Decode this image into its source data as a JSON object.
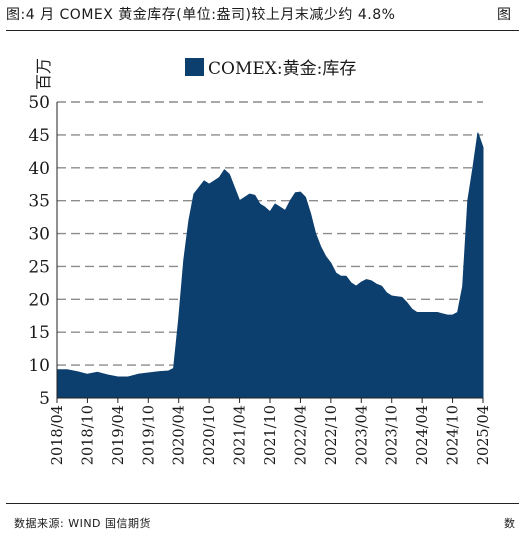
{
  "figure": {
    "title": "图:4 月 COMEX 黄金库存(单位:盎司)较上月末减少约 4.8%",
    "title_tail": "图",
    "source": "数据来源: WIND 国信期货",
    "source_tail": "数"
  },
  "colors": {
    "series": "#0d3f6e",
    "grid": "#8c8c8c",
    "axis": "#222222"
  },
  "chart_data": {
    "type": "area",
    "title": "",
    "ylabel": "百万",
    "xlabel": "",
    "ylim": [
      5,
      50
    ],
    "yticks": [
      5,
      10,
      15,
      20,
      25,
      30,
      35,
      40,
      45,
      50
    ],
    "grid": "horizontal dashed",
    "legend_position": "top-center",
    "xlim": [
      "2018-04",
      "2025-04"
    ],
    "xticks": [
      "2018/04",
      "2018/10",
      "2019/04",
      "2019/10",
      "2020/04",
      "2020/10",
      "2021/04",
      "2021/10",
      "2022/04",
      "2022/10",
      "2023/04",
      "2023/10",
      "2024/04",
      "2024/10",
      "2025/04"
    ],
    "series": [
      {
        "name": "COMEX:黄金:库存",
        "points": [
          [
            "2018-04",
            9.3
          ],
          [
            "2018-06",
            9.3
          ],
          [
            "2018-08",
            9.0
          ],
          [
            "2018-10",
            8.6
          ],
          [
            "2018-12",
            8.9
          ],
          [
            "2019-02",
            8.5
          ],
          [
            "2019-04",
            8.2
          ],
          [
            "2019-06",
            8.2
          ],
          [
            "2019-08",
            8.6
          ],
          [
            "2019-10",
            8.8
          ],
          [
            "2019-12",
            9.0
          ],
          [
            "2020-02",
            9.1
          ],
          [
            "2020-03",
            9.5
          ],
          [
            "2020-04",
            17.0
          ],
          [
            "2020-05",
            26.0
          ],
          [
            "2020-06",
            32.0
          ],
          [
            "2020-07",
            36.0
          ],
          [
            "2020-08",
            37.0
          ],
          [
            "2020-09",
            38.0
          ],
          [
            "2020-10",
            37.5
          ],
          [
            "2020-11",
            38.0
          ],
          [
            "2020-12",
            38.5
          ],
          [
            "2021-01",
            39.7
          ],
          [
            "2021-02",
            39.0
          ],
          [
            "2021-03",
            37.0
          ],
          [
            "2021-04",
            35.0
          ],
          [
            "2021-05",
            35.5
          ],
          [
            "2021-06",
            36.0
          ],
          [
            "2021-07",
            35.8
          ],
          [
            "2021-08",
            34.5
          ],
          [
            "2021-09",
            34.0
          ],
          [
            "2021-10",
            33.3
          ],
          [
            "2021-11",
            34.5
          ],
          [
            "2021-12",
            34.0
          ],
          [
            "2022-01",
            33.5
          ],
          [
            "2022-02",
            35.0
          ],
          [
            "2022-03",
            36.2
          ],
          [
            "2022-04",
            36.3
          ],
          [
            "2022-05",
            35.5
          ],
          [
            "2022-06",
            33.0
          ],
          [
            "2022-07",
            30.0
          ],
          [
            "2022-08",
            28.0
          ],
          [
            "2022-09",
            26.5
          ],
          [
            "2022-10",
            25.5
          ],
          [
            "2022-11",
            24.0
          ],
          [
            "2022-12",
            23.5
          ],
          [
            "2023-01",
            23.5
          ],
          [
            "2023-02",
            22.5
          ],
          [
            "2023-03",
            22.0
          ],
          [
            "2023-04",
            22.6
          ],
          [
            "2023-05",
            23.0
          ],
          [
            "2023-06",
            22.8
          ],
          [
            "2023-07",
            22.3
          ],
          [
            "2023-08",
            22.0
          ],
          [
            "2023-09",
            21.0
          ],
          [
            "2023-10",
            20.5
          ],
          [
            "2023-11",
            20.4
          ],
          [
            "2023-12",
            20.3
          ],
          [
            "2024-01",
            19.5
          ],
          [
            "2024-02",
            18.5
          ],
          [
            "2024-03",
            18.0
          ],
          [
            "2024-04",
            18.0
          ],
          [
            "2024-05",
            18.0
          ],
          [
            "2024-06",
            18.0
          ],
          [
            "2024-07",
            18.0
          ],
          [
            "2024-08",
            17.8
          ],
          [
            "2024-09",
            17.6
          ],
          [
            "2024-10",
            17.6
          ],
          [
            "2024-11",
            18.0
          ],
          [
            "2024-12",
            22.0
          ],
          [
            "2025-01",
            35.0
          ],
          [
            "2025-02",
            40.0
          ],
          [
            "2025-03",
            45.3
          ],
          [
            "2025-04",
            43.1
          ]
        ]
      }
    ]
  }
}
